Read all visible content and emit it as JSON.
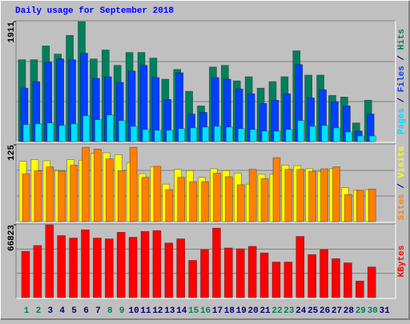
{
  "chart_data": [
    {
      "type": "bar",
      "title": "Daily usage for September 2018",
      "ylim": [
        0,
        1911
      ],
      "yticks": [
        1911
      ],
      "series": [
        {
          "name": "Hits",
          "color": "#00805c",
          "values": [
            1304,
            1304,
            1524,
            1394,
            1691,
            1911,
            1317,
            1459,
            1214,
            1420,
            1420,
            1330,
            994,
            1149,
            801,
            568,
            1188,
            1214,
            968,
            1033,
            852,
            955,
            1033,
            1446,
            1059,
            1059,
            736,
            710,
            297,
            659,
            null
          ]
        },
        {
          "name": "Files",
          "color": "#0040ff",
          "values": [
            852,
            955,
            1265,
            1317,
            1304,
            1408,
            1007,
            1033,
            943,
            1123,
            1214,
            1020,
            671,
            1097,
            439,
            465,
            1020,
            994,
            839,
            762,
            607,
            659,
            762,
            1227,
            697,
            826,
            633,
            568,
            168,
            439,
            null
          ]
        },
        {
          "name": "Pages",
          "color": "#00e0ff",
          "values": [
            271,
            284,
            297,
            258,
            284,
            413,
            349,
            426,
            336,
            245,
            194,
            181,
            181,
            207,
            219,
            232,
            245,
            232,
            207,
            194,
            168,
            168,
            194,
            336,
            245,
            258,
            219,
            155,
            90,
            90,
            null
          ]
        }
      ]
    },
    {
      "type": "bar",
      "ylim": [
        0,
        125
      ],
      "yticks": [
        125
      ],
      "series": [
        {
          "name": "Visits",
          "color": "#ffff00",
          "values": [
            98,
            101,
            99,
            83,
            101,
            100,
            111,
            112,
            109,
            96,
            78,
            89,
            61,
            85,
            83,
            72,
            86,
            83,
            79,
            61,
            77,
            77,
            92,
            91,
            86,
            81,
            86,
            55,
            51,
            52,
            null
          ]
        },
        {
          "name": "Sites",
          "color": "#ff8000",
          "values": [
            78,
            83,
            89,
            82,
            92,
            121,
            118,
            102,
            83,
            121,
            72,
            90,
            52,
            72,
            65,
            65,
            79,
            73,
            60,
            85,
            70,
            104,
            85,
            85,
            82,
            86,
            89,
            44,
            51,
            53,
            null
          ]
        }
      ]
    },
    {
      "type": "bar",
      "ylim": [
        0,
        66823
      ],
      "yticks": [
        66823
      ],
      "categories": [
        "1",
        "2",
        "3",
        "4",
        "5",
        "6",
        "7",
        "8",
        "9",
        "10",
        "11",
        "12",
        "13",
        "14",
        "15",
        "16",
        "17",
        "18",
        "19",
        "20",
        "21",
        "22",
        "23",
        "24",
        "25",
        "26",
        "27",
        "28",
        "29",
        "30",
        "31"
      ],
      "category_colors": [
        "#00805c",
        "#00805c",
        "#000080",
        "#000080",
        "#000080",
        "#000080",
        "#000080",
        "#00805c",
        "#00805c",
        "#000080",
        "#000080",
        "#000080",
        "#000080",
        "#000080",
        "#00805c",
        "#00805c",
        "#000080",
        "#000080",
        "#000080",
        "#000080",
        "#000080",
        "#00805c",
        "#00805c",
        "#000080",
        "#000080",
        "#000080",
        "#000080",
        "#000080",
        "#00805c",
        "#00805c",
        "#000080"
      ],
      "series": [
        {
          "name": "KBytes",
          "color": "#ff0000",
          "values": [
            42524,
            47840,
            66823,
            56951,
            54673,
            62267,
            54673,
            53914,
            59989,
            55432,
            60749,
            61508,
            50118,
            53914,
            34171,
            44042,
            63786,
            45561,
            44802,
            47080,
            41005,
            32653,
            32653,
            56192,
            39486,
            44042,
            35690,
            31893,
            15187,
            28096,
            null
          ]
        }
      ]
    }
  ]
}
